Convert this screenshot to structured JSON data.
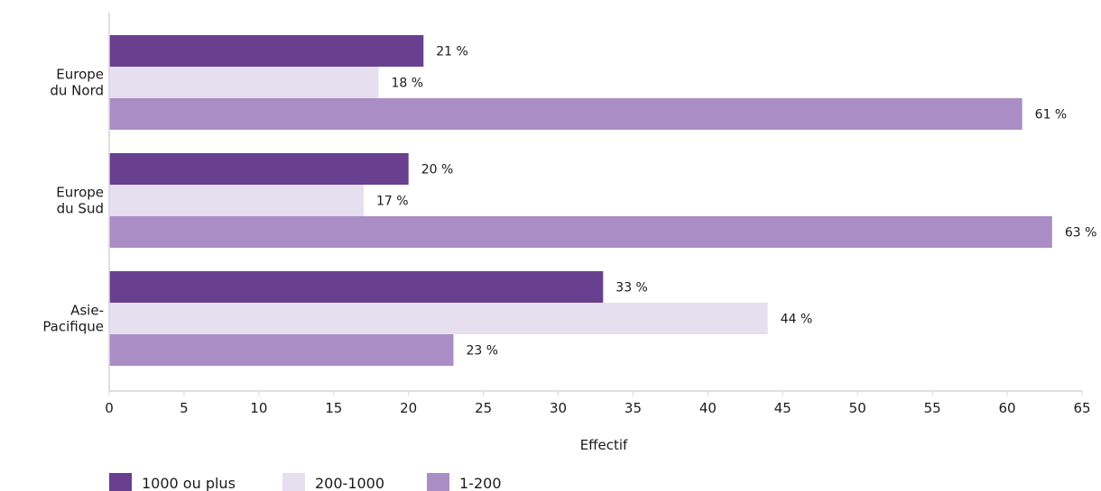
{
  "chart_data": {
    "type": "bar",
    "orientation": "horizontal",
    "categories": [
      [
        "Europe",
        "du Nord"
      ],
      [
        "Europe",
        "du Sud"
      ],
      [
        "Asie-",
        "Pacifique"
      ]
    ],
    "series": [
      {
        "name": "1000 ou plus",
        "color": "#693f8f",
        "values": [
          21,
          20,
          33
        ],
        "labels": [
          "21 %",
          "20 %",
          "33 %"
        ]
      },
      {
        "name": "200-1000",
        "color": "#e6dff0",
        "values": [
          18,
          17,
          44
        ],
        "labels": [
          "18 %",
          "17 %",
          "44 %"
        ]
      },
      {
        "name": "1-200",
        "color": "#a98dc4",
        "values": [
          61,
          63,
          23
        ],
        "labels": [
          "61 %",
          "63 %",
          "23 %"
        ]
      }
    ],
    "xlabel": "Effectif",
    "xlim": [
      0,
      65
    ],
    "xticks": [
      0,
      5,
      10,
      15,
      20,
      25,
      30,
      35,
      40,
      45,
      50,
      55,
      60,
      65
    ],
    "grid": false,
    "legend_position": "bottom-left"
  }
}
